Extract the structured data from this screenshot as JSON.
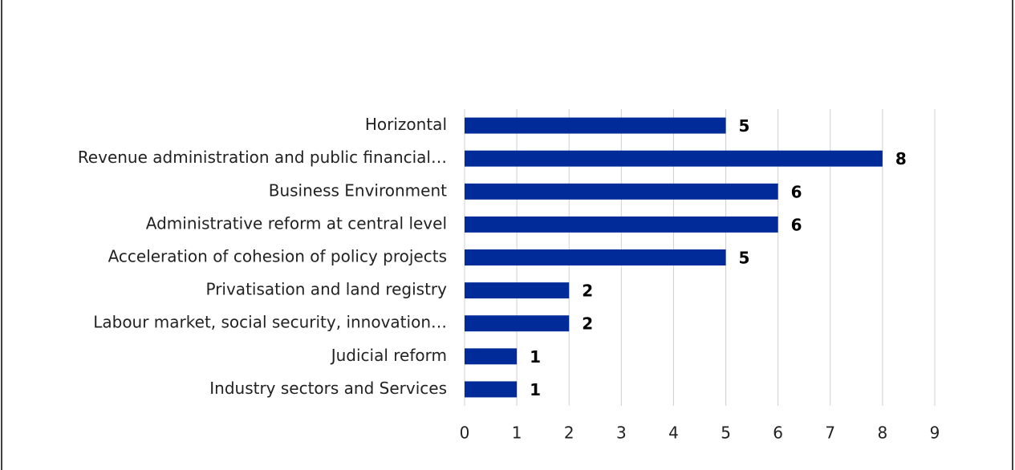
{
  "chart_data": {
    "type": "bar",
    "orientation": "horizontal",
    "categories": [
      "Horizontal",
      "Revenue administration and public financial…",
      "Business Environment",
      "Administrative reform at central level",
      "Acceleration of cohesion of policy projects",
      "Privatisation and land registry",
      "Labour market, social security, innovation…",
      "Judicial reform",
      "Industry sectors and Services"
    ],
    "values": [
      5,
      8,
      6,
      6,
      5,
      2,
      2,
      1,
      1
    ],
    "color": "#002b99",
    "xlim": [
      0,
      9
    ],
    "xticks": [
      0,
      1,
      2,
      3,
      4,
      5,
      6,
      7,
      8,
      9
    ],
    "grid": true
  }
}
